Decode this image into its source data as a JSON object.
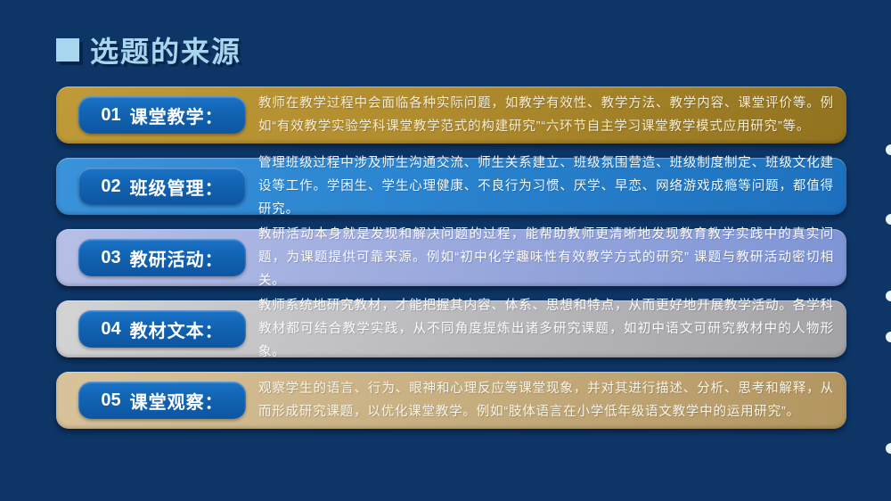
{
  "slide": {
    "title": "选题的来源",
    "colors": {
      "background": "#0d3566",
      "title_text": "#a8d6ee",
      "title_shadow": "#07254c",
      "label_button_blue": "#1060ae",
      "row_gold": "#b18d2e",
      "row_blue": "#2b84cf",
      "row_periwinkle": "#9dabde",
      "row_silver": "#bdbdc0",
      "row_tan": "#c9b184",
      "edge_dot": "#eef6fb"
    }
  },
  "rows": [
    {
      "num": "01",
      "label": "课堂教学：",
      "text": "教师在教学过程中会面临各种实际问题，如教学有效性、教学方法、教学内容、课堂评价等。例如“有效教学实验学科课堂教学范式的构建研究”“六环节自主学习课堂教学模式应用研究”等。",
      "theme": "gold"
    },
    {
      "num": "02",
      "label": "班级管理：",
      "text": "管理班级过程中涉及师生沟通交流、师生关系建立、班级氛围营造、班级制度制定、班级文化建设等工作。学困生、学生心理健康、不良行为习惯、厌学、早恋、网络游戏成瘾等问题，都值得研究。",
      "theme": "blue"
    },
    {
      "num": "03",
      "label": "教研活动：",
      "text": "教研活动本身就是发现和解决问题的过程，能帮助教师更清晰地发现教育教学实践中的真实问题，为课题提供可靠来源。例如“初中化学趣味性有效教学方式的研究” 课题与教研活动密切相关。",
      "theme": "periwinkle"
    },
    {
      "num": "04",
      "label": "教材文本：",
      "text": "教师系统地研究教材，才能把握其内容、体系、思想和特点，从而更好地开展教学活动。各学科教材都可结合教学实践，从不同角度提炼出诸多研究课题，如初中语文可研究教材中的人物形象。",
      "theme": "silver"
    },
    {
      "num": "05",
      "label": "课堂观察：",
      "text": "观察学生的语言、行为、眼神和心理反应等课堂现象，并对其进行描述、分析、思考和解释，从而形成研究课题，以优化课堂教学。例如“肢体语言在小学低年级语文教学中的运用研究”。",
      "theme": "tan"
    }
  ]
}
